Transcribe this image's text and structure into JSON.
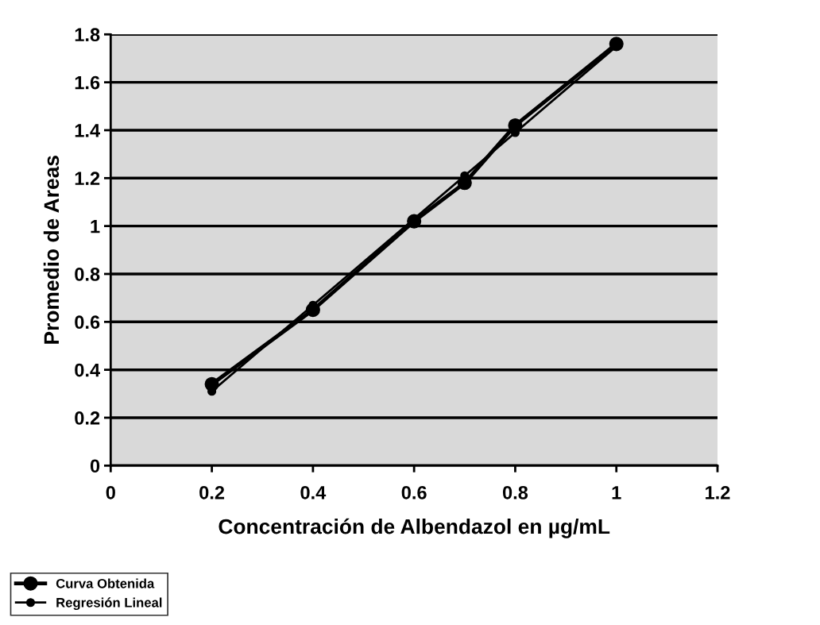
{
  "chart_data": {
    "type": "line",
    "xlabel": "Concentración de Albendazol en µg/mL",
    "ylabel": "Promedio de Areas",
    "x": [
      0.2,
      0.4,
      0.6,
      0.7,
      0.8,
      1.0
    ],
    "series": [
      {
        "name": "Curva Obtenida",
        "color": "#000000",
        "values": [
          0.34,
          0.65,
          1.02,
          1.18,
          1.42,
          1.76
        ]
      },
      {
        "name": "Regresión Lineal",
        "color": "#000000",
        "values": [
          0.31,
          0.67,
          1.03,
          1.21,
          1.39,
          1.75
        ]
      }
    ],
    "xlim": [
      0,
      1.2
    ],
    "xticks": [
      0,
      0.2,
      0.4,
      0.6,
      0.8,
      1,
      1.2
    ],
    "ylim": [
      0,
      1.8
    ],
    "yticks": [
      0,
      0.2,
      0.4,
      0.6,
      0.8,
      1,
      1.2,
      1.4,
      1.6,
      1.8
    ],
    "grid": "y",
    "legend": "bottom left",
    "marker": "circle",
    "line_style": "solid"
  }
}
